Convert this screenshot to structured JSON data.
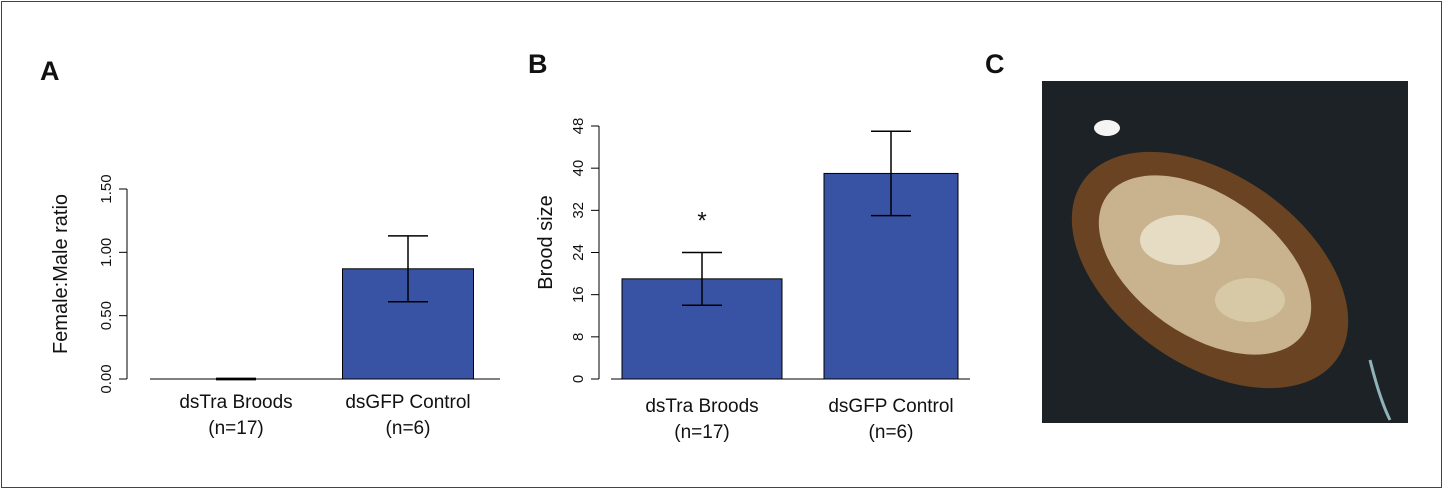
{
  "chart_data": [
    {
      "type": "bar",
      "panel": "A",
      "y_label": "Female:Male ratio",
      "categories": [
        "dsTra Broods\n(n=17)",
        "dsGFP Control\n(n=6)"
      ],
      "values": [
        0,
        0.87
      ],
      "errors": [
        0.005,
        0.26
      ],
      "color": "#3953a4",
      "ylim": [
        0,
        1.5
      ],
      "yticks": [
        {
          "value": 0,
          "label": "0.00"
        },
        {
          "value": 0.5,
          "label": "0.50"
        },
        {
          "value": 1,
          "label": "1.00"
        },
        {
          "value": 1.5,
          "label": "1.50"
        }
      ]
    },
    {
      "type": "bar",
      "panel": "B",
      "y_label": "Brood size",
      "categories": [
        "dsTra Broods\n(n=17)",
        "dsGFP Control\n(n=6)"
      ],
      "values": [
        19,
        39
      ],
      "errors": [
        5,
        8
      ],
      "color": "#3953a4",
      "annotations": [
        "*"
      ],
      "ylim": [
        0,
        48
      ],
      "yticks": [
        0,
        8,
        16,
        24,
        32,
        40,
        48
      ]
    },
    {
      "type": "image",
      "panel": "C"
    }
  ]
}
